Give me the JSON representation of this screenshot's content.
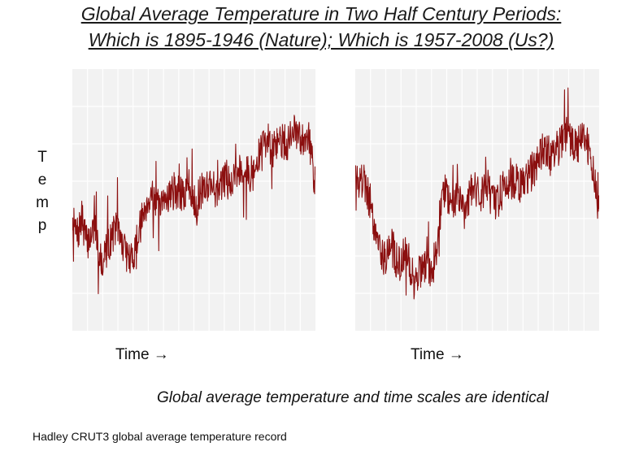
{
  "title_line1": "Global Average Temperature in Two Half Century Periods:",
  "title_line2": "Which is 1895-1946 (Nature); Which is 1957-2008 (Us?)",
  "ylabel_letters": [
    "T",
    "e",
    "m",
    "p"
  ],
  "note": "Global average temperature and time scales are identical",
  "source": "Hadley CRUT3 global average temperature record",
  "colors": {
    "line": "#8b0f0f",
    "plot_bg": "#f2f2f2",
    "grid": "#ffffff"
  },
  "chart_data": [
    {
      "type": "line",
      "xlabel": "Time →",
      "ylabel": "Temp",
      "grid": true,
      "ylim": [
        0,
        1
      ],
      "anchors": [
        [
          0,
          0.42
        ],
        [
          0.02,
          0.36
        ],
        [
          0.04,
          0.43
        ],
        [
          0.06,
          0.33
        ],
        [
          0.09,
          0.4
        ],
        [
          0.12,
          0.26
        ],
        [
          0.15,
          0.33
        ],
        [
          0.18,
          0.4
        ],
        [
          0.21,
          0.32
        ],
        [
          0.24,
          0.26
        ],
        [
          0.27,
          0.36
        ],
        [
          0.3,
          0.48
        ],
        [
          0.33,
          0.53
        ],
        [
          0.36,
          0.45
        ],
        [
          0.39,
          0.52
        ],
        [
          0.42,
          0.54
        ],
        [
          0.45,
          0.51
        ],
        [
          0.48,
          0.55
        ],
        [
          0.51,
          0.49
        ],
        [
          0.54,
          0.55
        ],
        [
          0.57,
          0.57
        ],
        [
          0.6,
          0.52
        ],
        [
          0.63,
          0.59
        ],
        [
          0.66,
          0.58
        ],
        [
          0.69,
          0.62
        ],
        [
          0.72,
          0.6
        ],
        [
          0.75,
          0.6
        ],
        [
          0.78,
          0.71
        ],
        [
          0.8,
          0.74
        ],
        [
          0.82,
          0.68
        ],
        [
          0.85,
          0.73
        ],
        [
          0.88,
          0.71
        ],
        [
          0.91,
          0.76
        ],
        [
          0.94,
          0.73
        ],
        [
          0.97,
          0.76
        ],
        [
          1.0,
          0.55
        ]
      ],
      "noise": 0.07,
      "seed": 7
    },
    {
      "type": "line",
      "xlabel": "Time →",
      "ylabel": "Temp",
      "grid": true,
      "ylim": [
        0,
        1
      ],
      "anchors": [
        [
          0,
          0.55
        ],
        [
          0.03,
          0.58
        ],
        [
          0.06,
          0.5
        ],
        [
          0.09,
          0.35
        ],
        [
          0.12,
          0.28
        ],
        [
          0.15,
          0.32
        ],
        [
          0.18,
          0.25
        ],
        [
          0.21,
          0.3
        ],
        [
          0.24,
          0.19
        ],
        [
          0.27,
          0.24
        ],
        [
          0.3,
          0.22
        ],
        [
          0.33,
          0.3
        ],
        [
          0.36,
          0.55
        ],
        [
          0.39,
          0.5
        ],
        [
          0.42,
          0.52
        ],
        [
          0.45,
          0.46
        ],
        [
          0.48,
          0.56
        ],
        [
          0.51,
          0.5
        ],
        [
          0.54,
          0.55
        ],
        [
          0.57,
          0.48
        ],
        [
          0.6,
          0.53
        ],
        [
          0.63,
          0.56
        ],
        [
          0.66,
          0.58
        ],
        [
          0.69,
          0.55
        ],
        [
          0.72,
          0.6
        ],
        [
          0.75,
          0.65
        ],
        [
          0.78,
          0.7
        ],
        [
          0.81,
          0.65
        ],
        [
          0.84,
          0.72
        ],
        [
          0.87,
          0.76
        ],
        [
          0.9,
          0.7
        ],
        [
          0.93,
          0.74
        ],
        [
          0.96,
          0.68
        ],
        [
          1.0,
          0.48
        ]
      ],
      "noise": 0.075,
      "seed": 19
    }
  ]
}
